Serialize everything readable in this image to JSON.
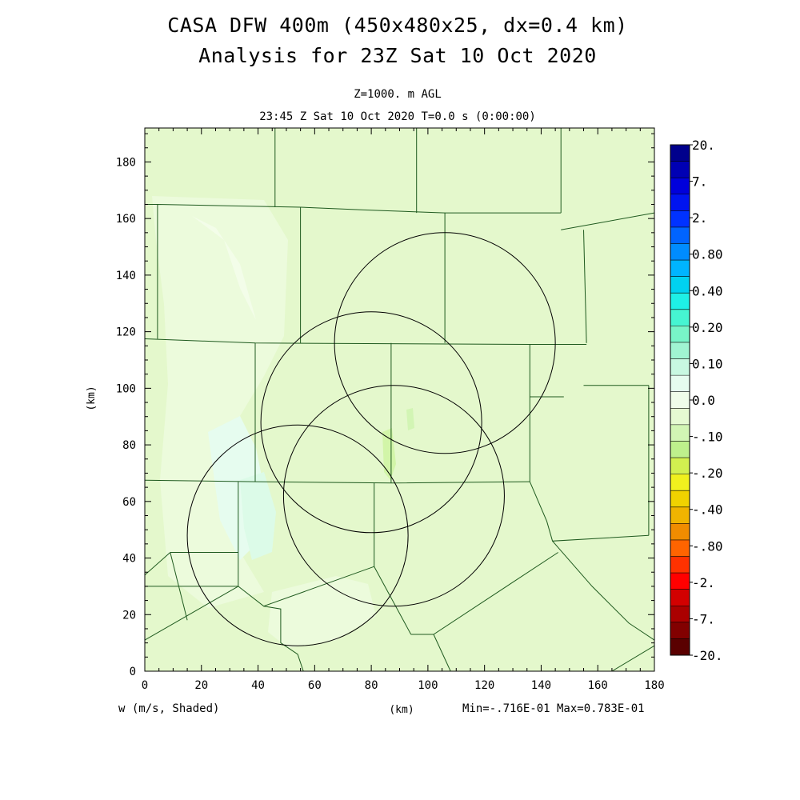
{
  "chart_data": {
    "type": "heatmap",
    "title": "CASA DFW 400m (450x480x25, dx=0.4 km)",
    "subtitle": "Analysis for 23Z Sat 10 Oct 2020",
    "level_label": "Z=1000. m AGL",
    "time_label": "23:45 Z Sat 10 Oct 2020    T=0.0 s (0:00:00)",
    "xlabel": "(km)",
    "ylabel": "(km)",
    "variable_label": "w (m/s, Shaded)",
    "minmax_label": "Min=-.716E-01 Max=0.783E-01",
    "xlim": [
      0,
      180
    ],
    "ylim": [
      0,
      192
    ],
    "xticks": [
      "0",
      "20",
      "40",
      "60",
      "80",
      "100",
      "120",
      "140",
      "160",
      "180"
    ],
    "yticks": [
      "0",
      "20",
      "40",
      "60",
      "80",
      "100",
      "120",
      "140",
      "160",
      "180"
    ],
    "colorbar_labels": [
      "20.",
      "7.",
      "2.",
      "0.80",
      "0.40",
      "0.20",
      "0.10",
      "0.0",
      "-.10",
      "-.20",
      "-.40",
      "-.80",
      "-2.",
      "-7.",
      "-20."
    ],
    "colorbar_colors": [
      "#00008c",
      "#0000b4",
      "#0000dc",
      "#0014f0",
      "#0032ff",
      "#0064ff",
      "#008cff",
      "#00b4ff",
      "#00d2f0",
      "#1ef0e6",
      "#46f5d2",
      "#78f5c8",
      "#a0f5d2",
      "#c8f8e1",
      "#e6fcef",
      "#f0fcea",
      "#e6fad2",
      "#d2f5b4",
      "#bef08c",
      "#d2f050",
      "#f0f01e",
      "#f0d200",
      "#f0b400",
      "#f08c00",
      "#ff6400",
      "#ff3200",
      "#ff0000",
      "#d20000",
      "#aa0000",
      "#820000",
      "#5a0000"
    ],
    "background_color": "#e4f8cc",
    "radar_rings_km": [
      {
        "x": 106,
        "y": 116,
        "r": 39
      },
      {
        "x": 80,
        "y": 88,
        "r": 39
      },
      {
        "x": 88,
        "y": 62,
        "r": 39
      },
      {
        "x": 54,
        "y": 48,
        "r": 39
      }
    ],
    "county_lines_km": [
      [
        [
          0,
          117.5
        ],
        [
          39,
          116
        ],
        [
          136,
          115.5
        ],
        [
          156,
          115.5
        ]
      ],
      [
        [
          4.5,
          117.5
        ],
        [
          4.5,
          165
        ],
        [
          55,
          164
        ],
        [
          79,
          163
        ],
        [
          106,
          162
        ],
        [
          147,
          162
        ]
      ],
      [
        [
          0,
          165
        ],
        [
          4.5,
          165
        ]
      ],
      [
        [
          46,
          164
        ],
        [
          46,
          192
        ]
      ],
      [
        [
          55,
          164
        ],
        [
          55,
          116
        ]
      ],
      [
        [
          96,
          162
        ],
        [
          96,
          192
        ]
      ],
      [
        [
          106,
          162
        ],
        [
          106,
          116
        ]
      ],
      [
        [
          147,
          162
        ],
        [
          147,
          192
        ]
      ],
      [
        [
          147,
          156
        ],
        [
          180,
          162
        ]
      ],
      [
        [
          155,
          156
        ],
        [
          156,
          116
        ]
      ],
      [
        [
          136,
          115.5
        ],
        [
          136,
          67
        ]
      ],
      [
        [
          136,
          97
        ],
        [
          148,
          97
        ]
      ],
      [
        [
          155,
          101
        ],
        [
          178,
          101
        ]
      ],
      [
        [
          178,
          101
        ],
        [
          178,
          48
        ]
      ],
      [
        [
          39,
          116
        ],
        [
          39,
          67
        ]
      ],
      [
        [
          87,
          116
        ],
        [
          87,
          66.5
        ]
      ],
      [
        [
          0,
          67.5
        ],
        [
          39,
          67
        ],
        [
          87,
          66.5
        ],
        [
          136,
          67
        ]
      ],
      [
        [
          33,
          67
        ],
        [
          33,
          30
        ]
      ],
      [
        [
          81,
          66.5
        ],
        [
          81,
          37
        ]
      ],
      [
        [
          0,
          30
        ],
        [
          33,
          30
        ],
        [
          42,
          23
        ],
        [
          81,
          37
        ],
        [
          94,
          13
        ]
      ],
      [
        [
          9,
          42
        ],
        [
          33,
          42
        ]
      ],
      [
        [
          9,
          42
        ],
        [
          0,
          34
        ]
      ],
      [
        [
          15,
          18
        ],
        [
          9,
          42
        ]
      ],
      [
        [
          136,
          67
        ],
        [
          142,
          53
        ],
        [
          144,
          46
        ],
        [
          178,
          48
        ]
      ],
      [
        [
          144,
          46
        ],
        [
          158,
          30
        ],
        [
          171,
          17
        ],
        [
          180,
          11
        ]
      ],
      [
        [
          146,
          42
        ],
        [
          102,
          13
        ],
        [
          94,
          13
        ]
      ],
      [
        [
          102,
          13
        ],
        [
          108,
          0
        ]
      ],
      [
        [
          0,
          11
        ],
        [
          33,
          30
        ]
      ],
      [
        [
          42,
          23
        ],
        [
          48,
          22
        ],
        [
          48,
          10
        ],
        [
          54,
          6
        ],
        [
          56,
          0
        ]
      ],
      [
        [
          165,
          0
        ],
        [
          180,
          9
        ]
      ]
    ]
  }
}
